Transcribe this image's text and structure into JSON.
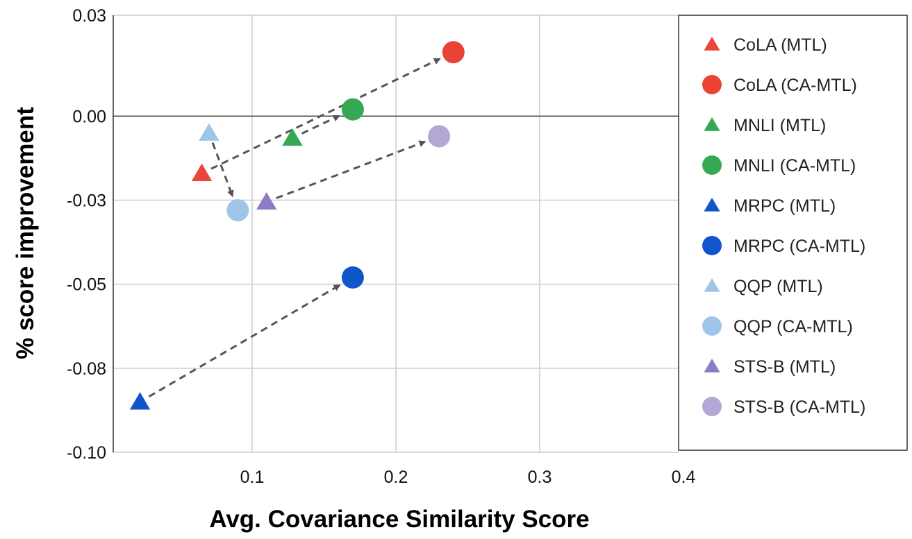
{
  "chart_data": {
    "type": "scatter",
    "title": "",
    "xlabel": "Avg. Covariance Similarity Score",
    "ylabel": "% score improvement",
    "xlim": [
      0.01,
      0.4
    ],
    "ylim": [
      -0.1,
      0.03
    ],
    "x_ticks": [
      0.1,
      0.2,
      0.3,
      0.4
    ],
    "x_tick_labels": [
      "0.1",
      "0.2",
      "0.3",
      "0.4"
    ],
    "y_ticks": [
      0.03,
      0.0,
      -0.025,
      -0.05,
      -0.075,
      -0.1
    ],
    "y_tick_labels": [
      "0.03",
      "0.00",
      "-0.03",
      "-0.05",
      "-0.08",
      "-0.10"
    ],
    "grid": true,
    "legend_position": "right",
    "series": [
      {
        "name": "CoLA (MTL)",
        "marker": "triangle",
        "color": "#e8453c",
        "x": 0.065,
        "y": -0.017
      },
      {
        "name": "CoLA (CA-MTL)",
        "marker": "circle",
        "color": "#ea4335",
        "x": 0.24,
        "y": 0.019
      },
      {
        "name": "MNLI (MTL)",
        "marker": "triangle",
        "color": "#34a853",
        "x": 0.128,
        "y": -0.0065
      },
      {
        "name": "MNLI (CA-MTL)",
        "marker": "circle",
        "color": "#34a853",
        "x": 0.17,
        "y": 0.002
      },
      {
        "name": "MRPC (MTL)",
        "marker": "triangle",
        "color": "#1155cc",
        "x": 0.022,
        "y": -0.085
      },
      {
        "name": "MRPC (CA-MTL)",
        "marker": "circle",
        "color": "#1155cc",
        "x": 0.17,
        "y": -0.048
      },
      {
        "name": "QQP (MTL)",
        "marker": "triangle",
        "color": "#9fc5e8",
        "x": 0.07,
        "y": -0.005
      },
      {
        "name": "QQP (CA-MTL)",
        "marker": "circle",
        "color": "#9fc5e8",
        "x": 0.09,
        "y": -0.028
      },
      {
        "name": "STS-B (MTL)",
        "marker": "triangle",
        "color": "#8e7cc3",
        "x": 0.11,
        "y": -0.0255
      },
      {
        "name": "STS-B (CA-MTL)",
        "marker": "circle",
        "color": "#b4a7d6",
        "x": 0.23,
        "y": -0.006
      }
    ],
    "arrows": [
      {
        "name": "CoLA",
        "from": [
          0.065,
          -0.017
        ],
        "to": [
          0.24,
          0.019
        ]
      },
      {
        "name": "MNLI",
        "from": [
          0.128,
          -0.0065
        ],
        "to": [
          0.17,
          0.002
        ]
      },
      {
        "name": "MRPC",
        "from": [
          0.022,
          -0.085
        ],
        "to": [
          0.17,
          -0.048
        ]
      },
      {
        "name": "QQP",
        "from": [
          0.07,
          -0.005
        ],
        "to": [
          0.09,
          -0.028
        ]
      },
      {
        "name": "STS-B",
        "from": [
          0.11,
          -0.0255
        ],
        "to": [
          0.23,
          -0.006
        ]
      }
    ]
  }
}
